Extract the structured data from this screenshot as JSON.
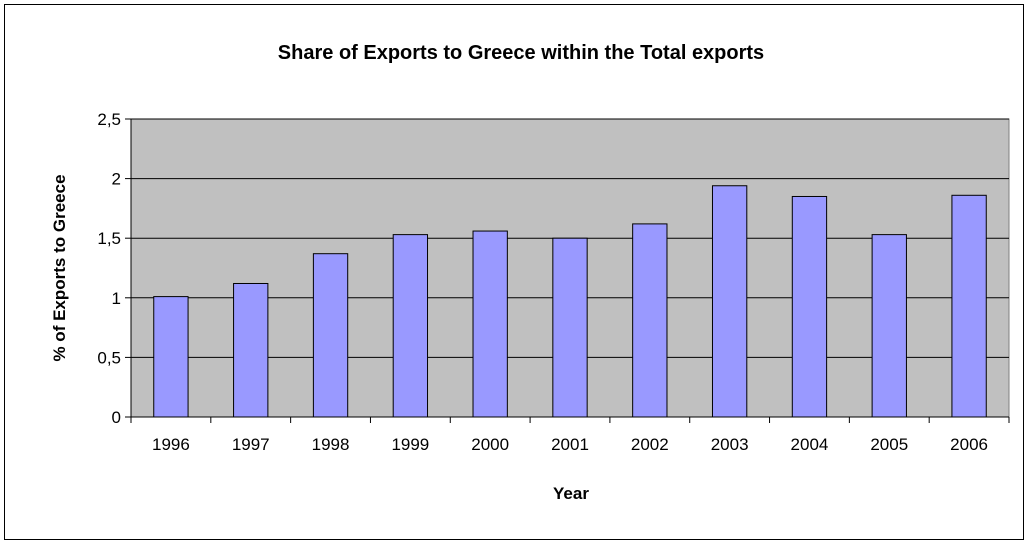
{
  "chart_data": {
    "type": "bar",
    "title": "Share of Exports to Greece within the Total exports",
    "xlabel": "Year",
    "ylabel": "% of Exports to Greece",
    "categories": [
      "1996",
      "1997",
      "1998",
      "1999",
      "2000",
      "2001",
      "2002",
      "2003",
      "2004",
      "2005",
      "2006"
    ],
    "values": [
      1.01,
      1.12,
      1.37,
      1.53,
      1.56,
      1.5,
      1.62,
      1.94,
      1.85,
      1.53,
      1.86
    ],
    "ylim": [
      0,
      2.5
    ],
    "yticks": [
      {
        "value": 0,
        "label": "0"
      },
      {
        "value": 0.5,
        "label": "0,5"
      },
      {
        "value": 1,
        "label": "1"
      },
      {
        "value": 1.5,
        "label": "1,5"
      },
      {
        "value": 2,
        "label": "2"
      },
      {
        "value": 2.5,
        "label": "2,5"
      }
    ],
    "grid": true,
    "legend": "none",
    "colors": {
      "bar_fill": "#9999ff",
      "plot_background": "#c0c0c0",
      "outline": "#000000"
    }
  }
}
